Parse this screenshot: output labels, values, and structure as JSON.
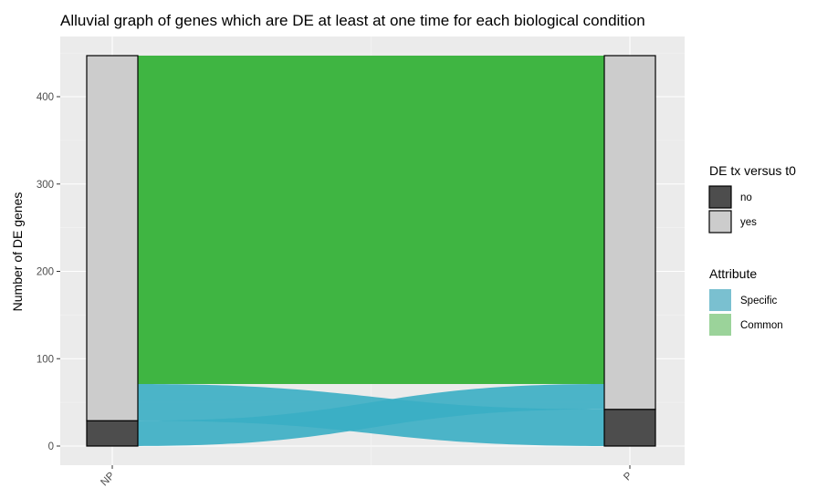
{
  "chart_data": {
    "type": "alluvial",
    "title": "Alluvial graph of genes which are DE at least at one time for each biological condition",
    "xlabel": "",
    "ylabel": "Number of DE genes",
    "categories": [
      "NP",
      "P"
    ],
    "ylim": [
      0,
      447
    ],
    "yticks": [
      0,
      100,
      200,
      300,
      400
    ],
    "grid": true,
    "legend_position": "right",
    "strata": {
      "title": "DE tx versus t0",
      "levels": [
        {
          "name": "no",
          "color": "#4d4d4d"
        },
        {
          "name": "yes",
          "color": "#cccccc"
        }
      ],
      "values": {
        "NP": {
          "no": 29,
          "yes": 418
        },
        "P": {
          "no": 42,
          "yes": 405
        }
      }
    },
    "attribute": {
      "title": "Attribute",
      "levels": [
        {
          "name": "Specific",
          "color": "#7ac0d0"
        },
        {
          "name": "Common",
          "color": "#9bd39a"
        }
      ]
    },
    "flows": [
      {
        "attribute": "Specific",
        "from": "NP",
        "from_range": [
          0,
          29
        ],
        "to": "P",
        "to_range": [
          42,
          71
        ],
        "color": "#3aaec4"
      },
      {
        "attribute": "Specific",
        "from": "NP",
        "from_range": [
          29,
          71
        ],
        "to": "P",
        "to_range": [
          0,
          42
        ],
        "color": "#3aaec4"
      },
      {
        "attribute": "Common",
        "from": "NP",
        "from_range": [
          71,
          447
        ],
        "to": "P",
        "to_range": [
          71,
          447
        ],
        "color": "#3fb542"
      }
    ]
  }
}
